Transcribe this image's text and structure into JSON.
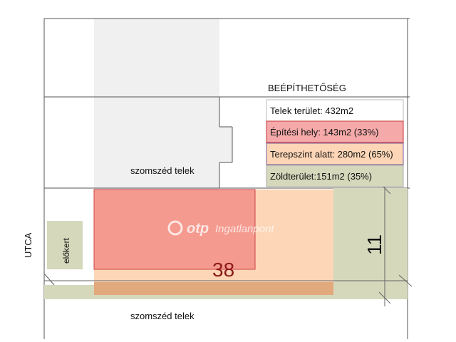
{
  "title": "BEÉPÍTHETŐSÉG",
  "legend": {
    "telek": "Telek terület: 432m2",
    "epitesi": "Építési hely: 143m2 (33%)",
    "terepszint": "Terepszint alatt: 280m2 (65%)",
    "zold": "Zöldterület:151m2 (35%)"
  },
  "labels": {
    "neighbor_top": "szomszéd telek",
    "neighbor_bottom": "szomszéd telek",
    "street": "UTCA",
    "front_garden": "előkert"
  },
  "dimensions": {
    "length": "38",
    "width": "11"
  },
  "watermark": {
    "brand": "otp",
    "suffix": "Ingatlanpont"
  },
  "colors": {
    "building_zone": "#f59a8f",
    "underground": "#fcd6b6",
    "green_area": "#d5d8bb",
    "strip_bottom": "#e2a97d",
    "neighbor_gray": "#f0f0f0",
    "legend_border_red": "#c43a3a",
    "legend_border_purple": "#7a5fa0"
  }
}
